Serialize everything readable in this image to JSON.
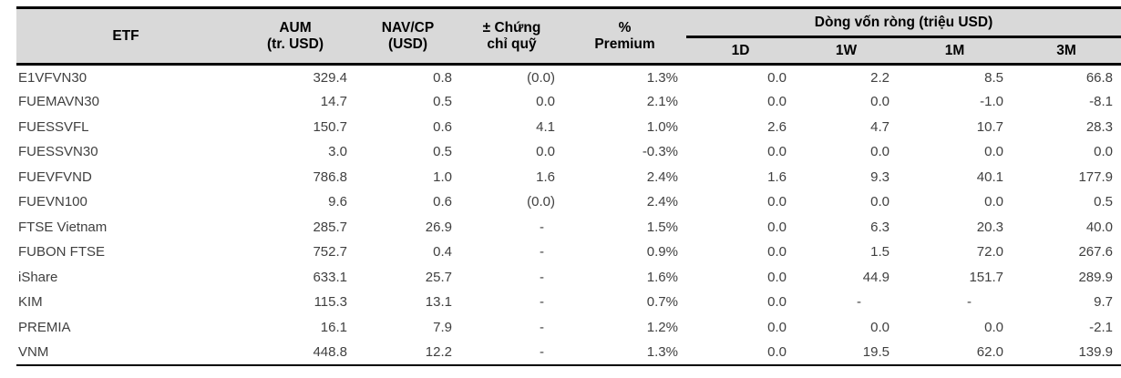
{
  "table": {
    "headers": {
      "etf": "ETF",
      "aum_line1": "AUM",
      "aum_line2": "(tr. USD)",
      "nav_line1": "NAV/CP",
      "nav_line2": "(USD)",
      "change_line1": "± Chứng",
      "change_line2": "chỉ quỹ",
      "premium_line1": "%",
      "premium_line2": "Premium",
      "flows_group": "Dòng vốn ròng (triệu USD)",
      "d1": "1D",
      "w1": "1W",
      "m1": "1M",
      "m3": "3M"
    },
    "rows": [
      [
        "E1VFVN30",
        "329.4",
        "0.8",
        "(0.0)",
        "1.3%",
        "0.0",
        "2.2",
        "8.5",
        "66.8"
      ],
      [
        "FUEMAVN30",
        "14.7",
        "0.5",
        "0.0",
        "2.1%",
        "0.0",
        "0.0",
        "-1.0",
        "-8.1"
      ],
      [
        "FUESSVFL",
        "150.7",
        "0.6",
        "4.1",
        "1.0%",
        "2.6",
        "4.7",
        "10.7",
        "28.3"
      ],
      [
        "FUESSVN30",
        "3.0",
        "0.5",
        "0.0",
        "-0.3%",
        "0.0",
        "0.0",
        "0.0",
        "0.0"
      ],
      [
        "FUEVFVND",
        "786.8",
        "1.0",
        "1.6",
        "2.4%",
        "1.6",
        "9.3",
        "40.1",
        "177.9"
      ],
      [
        "FUEVN100",
        "9.6",
        "0.6",
        "(0.0)",
        "2.4%",
        "0.0",
        "0.0",
        "0.0",
        "0.5"
      ],
      [
        "FTSE Vietnam",
        "285.7",
        "26.9",
        "-",
        "1.5%",
        "0.0",
        "6.3",
        "20.3",
        "40.0"
      ],
      [
        "FUBON FTSE",
        "752.7",
        "0.4",
        "-",
        "0.9%",
        "0.0",
        "1.5",
        "72.0",
        "267.6"
      ],
      [
        "iShare",
        "633.1",
        "25.7",
        "-",
        "1.6%",
        "0.0",
        "44.9",
        "151.7",
        "289.9"
      ],
      [
        "KIM",
        "115.3",
        "13.1",
        "-",
        "0.7%",
        "0.0",
        "-",
        "-",
        "9.7"
      ],
      [
        "PREMIA",
        "16.1",
        "7.9",
        "-",
        "1.2%",
        "0.0",
        "0.0",
        "0.0",
        "-2.1"
      ],
      [
        "VNM",
        "448.8",
        "12.2",
        "-",
        "1.3%",
        "0.0",
        "19.5",
        "62.0",
        "139.9"
      ]
    ]
  },
  "colors": {
    "header_bg": "#d9d9d9",
    "header_text": "#000000",
    "body_text": "#404040",
    "border": "#000000",
    "page_bg": "#ffffff"
  }
}
